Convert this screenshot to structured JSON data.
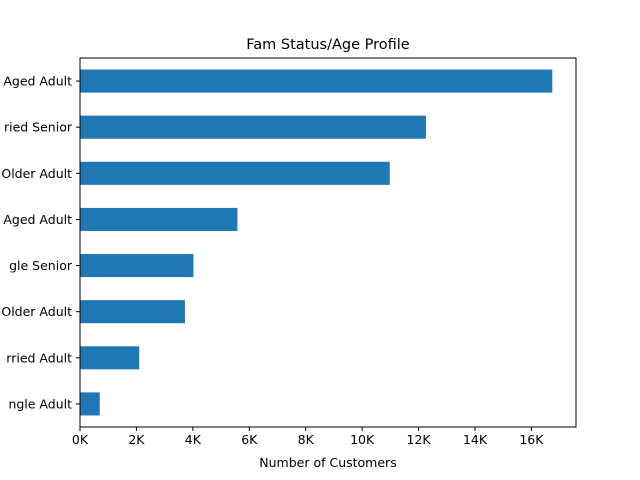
{
  "chart_data": {
    "type": "bar",
    "orientation": "horizontal",
    "title": "Fam Status/Age Profile",
    "xlabel": "Number of Customers",
    "ylabel": "",
    "categories": [
      "ngle Adult",
      "rried Adult",
      "Older Adult",
      "gle Senior",
      "Aged Adult",
      "Older Adult",
      "ried Senior",
      "Aged Adult"
    ],
    "values": [
      700,
      2100,
      3720,
      4020,
      5580,
      10980,
      12260,
      16740
    ],
    "xlim": [
      0,
      17580
    ],
    "xticks": [
      0,
      2000,
      4000,
      6000,
      8000,
      10000,
      12000,
      14000,
      16000
    ],
    "xtick_labels": [
      "0K",
      "2K",
      "4K",
      "6K",
      "8K",
      "10K",
      "12K",
      "14K",
      "16K"
    ],
    "grid": false,
    "color": "#1f77b4"
  }
}
